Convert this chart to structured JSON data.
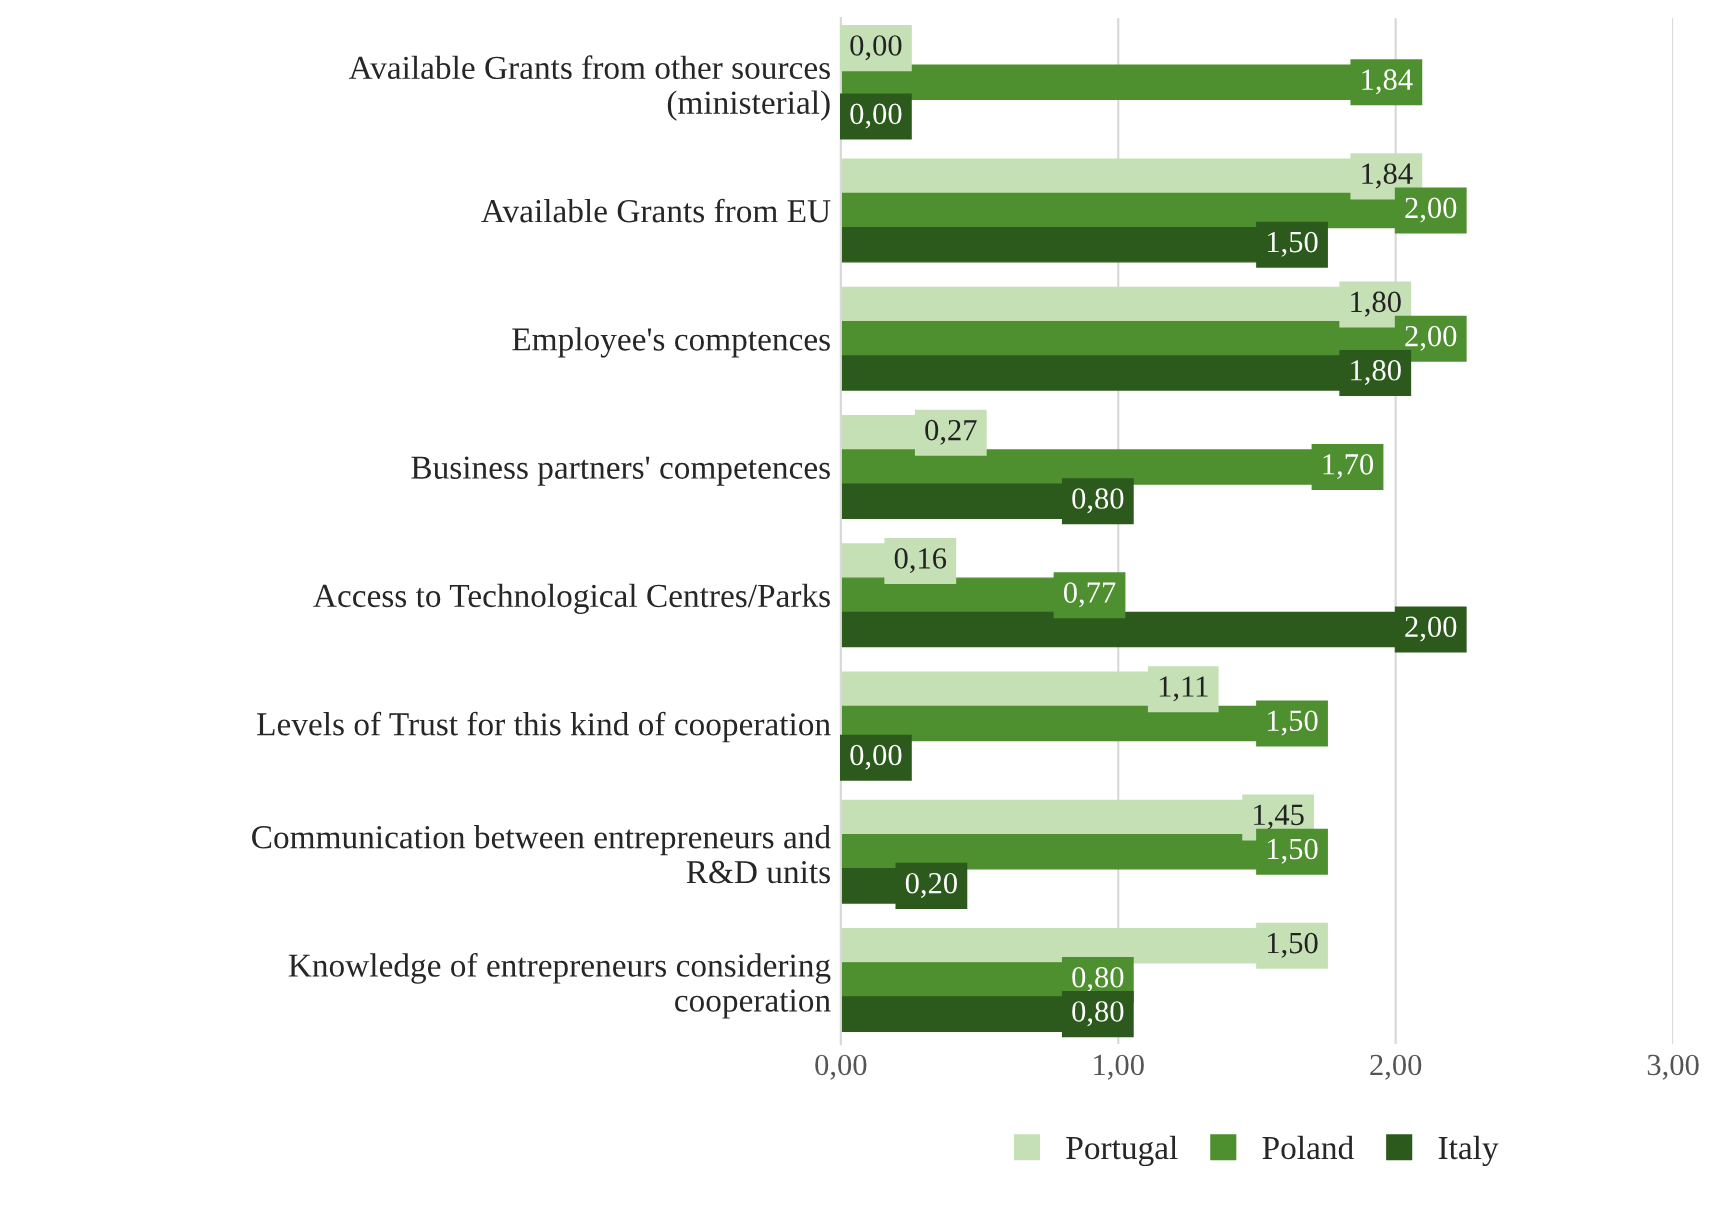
{
  "chart_data": {
    "type": "bar",
    "orientation": "horizontal",
    "categories": [
      "Available Grants from other sources\n(ministerial)",
      "Available Grants from EU",
      "Employee's comptences",
      "Business partners' competences",
      "Access to Technological Centres/Parks",
      "Levels of Trust for this kind of cooperation",
      "Communication between entrepreneurs and\nR&D units",
      "Knowledge of entrepreneurs considering\ncooperation"
    ],
    "series": [
      {
        "name": "Portugal",
        "color": "#c5e0b4",
        "values": [
          0.0,
          1.84,
          1.8,
          0.27,
          0.16,
          1.11,
          1.45,
          1.5
        ],
        "value_labels": [
          "0,00",
          "1,84",
          "1,80",
          "0,27",
          "0,16",
          "1,11",
          "1,45",
          "1,50"
        ]
      },
      {
        "name": "Poland",
        "color": "#4e8f2f",
        "values": [
          1.84,
          2.0,
          2.0,
          1.7,
          0.77,
          1.5,
          1.5,
          0.8
        ],
        "value_labels": [
          "1,84",
          "2,00",
          "2,00",
          "1,70",
          "0,77",
          "1,50",
          "1,50",
          "0,80"
        ]
      },
      {
        "name": "Italy",
        "color": "#2c5a1c",
        "values": [
          0.0,
          1.5,
          1.8,
          0.8,
          2.0,
          0.0,
          0.2,
          0.8
        ],
        "value_labels": [
          "0,00",
          "1,50",
          "1,80",
          "0,80",
          "2,00",
          "0,00",
          "0,20",
          "0,80"
        ]
      }
    ],
    "xlim": [
      0,
      3
    ],
    "xticks": [
      {
        "value": 0,
        "label": "0,00"
      },
      {
        "value": 1,
        "label": "1,00"
      },
      {
        "value": 2,
        "label": "2,00"
      },
      {
        "value": 3,
        "label": "3,00"
      }
    ],
    "grid": "x",
    "legend": "bottom"
  }
}
